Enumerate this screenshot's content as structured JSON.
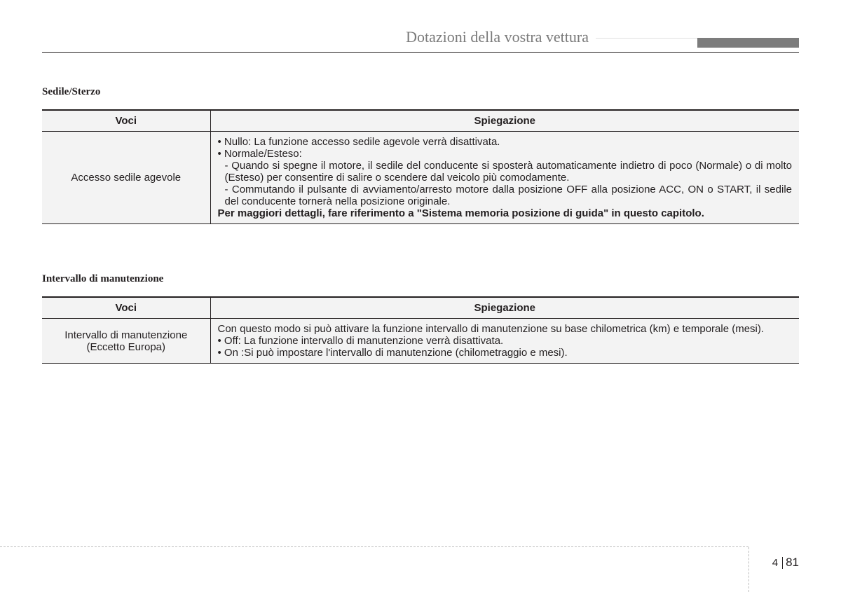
{
  "header": {
    "chapter_title": "Dotazioni della vostra vettura",
    "bar_gray_color": "#7c7c7c"
  },
  "section1": {
    "title": "Sedile/Sterzo",
    "col1_header": "Voci",
    "col2_header": "Spiegazione",
    "row1": {
      "voci": "Accesso sedile agevole",
      "line1": "• Nullo: La funzione accesso sedile agevole verrà disattivata.",
      "line2": "• Normale/Esteso:",
      "line3": "- Quando si spegne il motore, il sedile del conducente si sposterà automaticamente indietro di poco (Normale) o di molto (Esteso) per consentire di salire o scendere dal veicolo più comodamente.",
      "line4": "- Commutando il pulsante di avviamento/arresto motore dalla posizione OFF alla posizione ACC, ON o START, il sedile del conducente tornerà nella posizione originale.",
      "line5": "Per maggiori dettagli, fare riferimento a \"Sistema memoria posizione di guida\" in questo capitolo."
    }
  },
  "section2": {
    "title": "Intervallo di manutenzione",
    "col1_header": "Voci",
    "col2_header": "Spiegazione",
    "row1": {
      "voci_l1": "Intervallo di manutenzione",
      "voci_l2": "(Eccetto Europa)",
      "line1": "Con questo modo si può attivare la funzione intervallo di manutenzione su base chilometrica (km) e temporale (mesi).",
      "line2": "• Off: La funzione intervallo di manutenzione verrà disattivata.",
      "line3": "• On :Si può impostare l'intervallo di manutenzione (chilometraggio e mesi)."
    }
  },
  "footer": {
    "chapter": "4",
    "page": "81"
  }
}
